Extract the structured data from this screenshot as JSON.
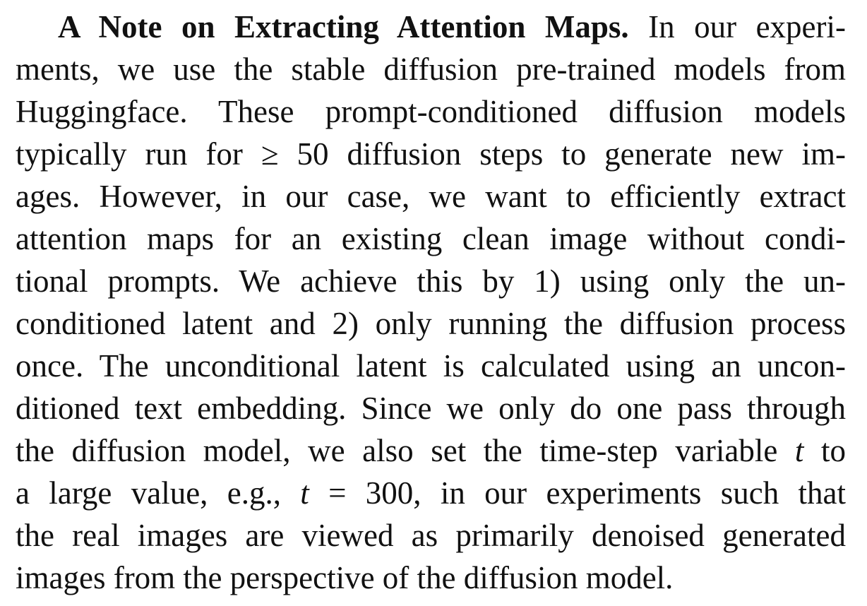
{
  "heading": "A Note on Extracting Attention Maps.",
  "lines": [
    "In our experi-",
    "ments, we use the stable diffusion pre-trained models from",
    "Huggingface. These prompt-conditioned diffusion models",
    "typically run for ≥ 50 diffusion steps to generate new im-",
    "ages. However, in our case, we want to efficiently extract",
    "attention maps for an existing clean image without condi-",
    "tional prompts. We achieve this by 1) using only the un-",
    "conditioned latent and 2) only running the diffusion process",
    "once. The unconditional latent is calculated using an uncon-",
    "ditioned text embedding. Since we only do one pass through",
    "the diffusion model, we also set the time-step variable",
    "a large value, e.g.,",
    "the real images are viewed as primarily denoised generated",
    "images from the perspective of the diffusion model."
  ],
  "math": {
    "var": "t",
    "to": "to",
    "eq": "= 300, in our experiments such that"
  }
}
